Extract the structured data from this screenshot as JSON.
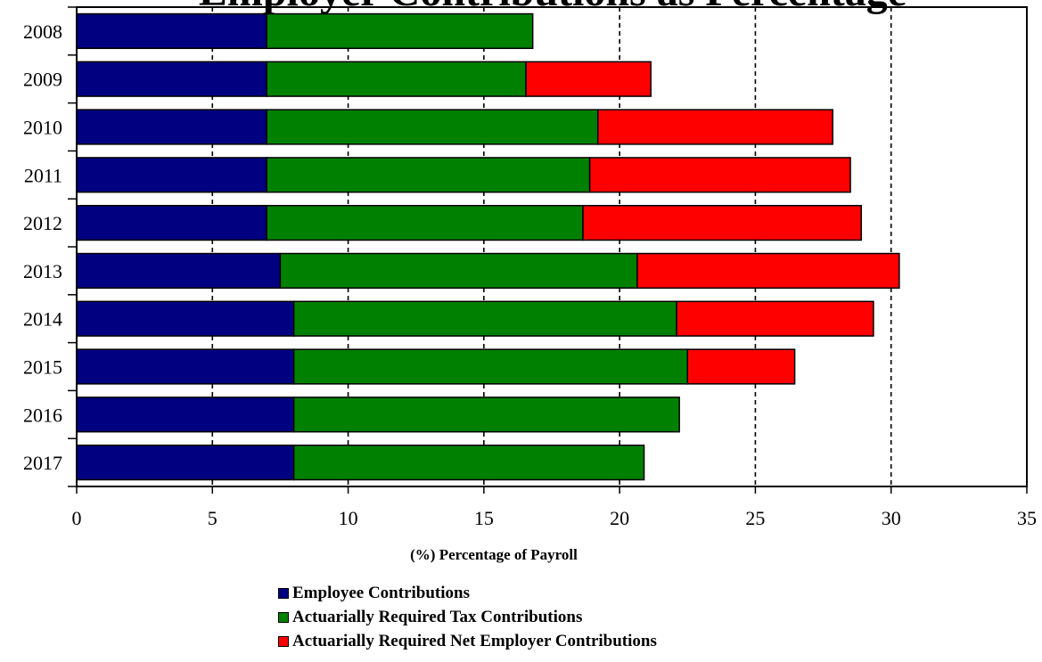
{
  "chart_data": {
    "type": "bar",
    "orientation": "horizontal",
    "stacked": true,
    "title_partial": "Employer Contributions as Percentage",
    "categories": [
      "2008",
      "2009",
      "2010",
      "2011",
      "2012",
      "2013",
      "2014",
      "2015",
      "2016",
      "2017"
    ],
    "series": [
      {
        "name": "Employee Contributions",
        "color": "#000080",
        "values": [
          7.0,
          7.0,
          7.0,
          7.0,
          7.0,
          7.5,
          8.0,
          8.0,
          8.0,
          8.0
        ]
      },
      {
        "name": "Actuarially Required Tax Contributions",
        "color": "#008000",
        "values": [
          9.8,
          9.55,
          12.2,
          11.9,
          11.65,
          13.15,
          14.1,
          14.5,
          14.2,
          12.9
        ]
      },
      {
        "name": "Actuarially Required Net Employer Contributions",
        "color": "#ff0000",
        "values": [
          0,
          4.6,
          8.65,
          9.6,
          10.25,
          9.65,
          7.25,
          3.95,
          0,
          0
        ]
      }
    ],
    "xlabel": "(%) Percentage of Payroll",
    "ylabel": "",
    "xlim": [
      0,
      35
    ],
    "xticks": [
      "0",
      "5",
      "10",
      "15",
      "20",
      "25",
      "30",
      "35"
    ],
    "grid": "vertical dashed",
    "legend_position": "bottom"
  }
}
